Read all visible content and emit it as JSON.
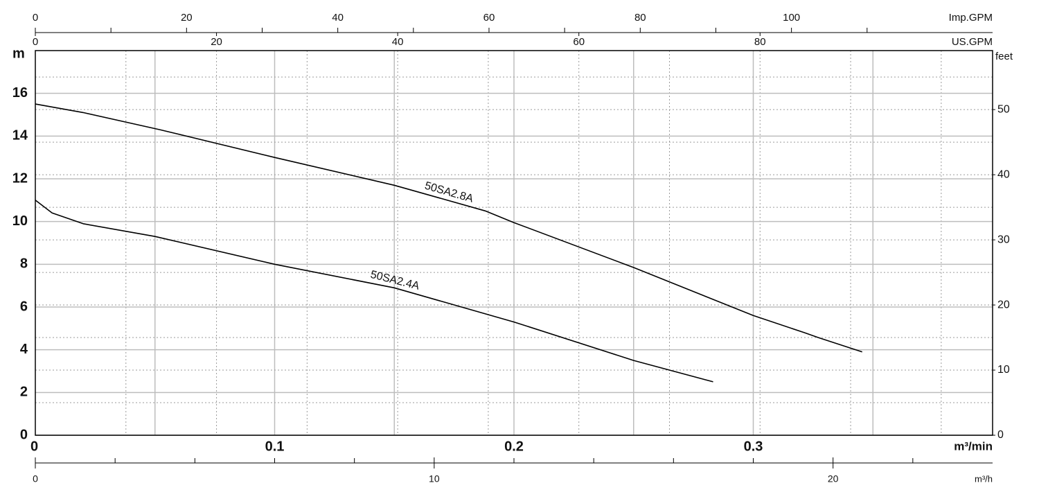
{
  "chart_data": {
    "type": "line",
    "xlabel": "m³/min",
    "xlim": [
      0,
      0.4
    ],
    "xticks": [
      0,
      0.1,
      0.2,
      0.3
    ],
    "xgrid": [
      0.05,
      0.1,
      0.15,
      0.2,
      0.25,
      0.3,
      0.35
    ],
    "ylabel": "m",
    "ylim": [
      0,
      18
    ],
    "yticks": [
      0,
      2,
      4,
      6,
      8,
      10,
      12,
      14,
      16
    ],
    "y2label": "feet",
    "y2lim": [
      0,
      59.06
    ],
    "y2ticks": [
      0,
      10,
      20,
      30,
      40,
      50
    ],
    "y2grid": [
      5,
      10,
      15,
      20,
      25,
      30,
      35,
      40,
      45,
      50,
      55
    ],
    "top_axes": [
      {
        "label": "Imp.GPM",
        "lim": [
          0,
          126.6
        ],
        "ticks": [
          0,
          20,
          40,
          60,
          80,
          100
        ],
        "minor_ticks": [
          10,
          30,
          50,
          70,
          90,
          110
        ]
      },
      {
        "label": "US.GPM",
        "lim": [
          0,
          105.67
        ],
        "ticks": [
          0,
          20,
          40,
          60,
          80
        ],
        "grid": [
          10,
          20,
          30,
          40,
          50,
          60,
          70,
          80,
          90,
          100
        ]
      }
    ],
    "bottom_axis": {
      "label": "m³/h",
      "lim": [
        0,
        24
      ],
      "ticks": [
        0,
        10,
        20
      ],
      "minor_ticks": [
        2,
        4,
        6,
        8,
        12,
        14,
        16,
        18,
        22
      ]
    },
    "series": [
      {
        "name": "50SA2.8A",
        "color": "#000000",
        "x": [
          0,
          0.02,
          0.052,
          0.1,
          0.15,
          0.188,
          0.2,
          0.25,
          0.3,
          0.3214,
          0.3272,
          0.3455
        ],
        "values": [
          15.5,
          15.1,
          14.3,
          13.0,
          11.7,
          10.5,
          9.95,
          7.85,
          5.6,
          4.8,
          4.57,
          3.9
        ]
      },
      {
        "name": "50SA2.4A",
        "color": "#000000",
        "x": [
          0,
          0.007,
          0.02,
          0.05,
          0.1,
          0.15,
          0.2,
          0.25,
          0.2832
        ],
        "values": [
          11.0,
          10.4,
          9.9,
          9.3,
          8.0,
          6.9,
          5.3,
          3.5,
          2.5
        ]
      }
    ]
  }
}
